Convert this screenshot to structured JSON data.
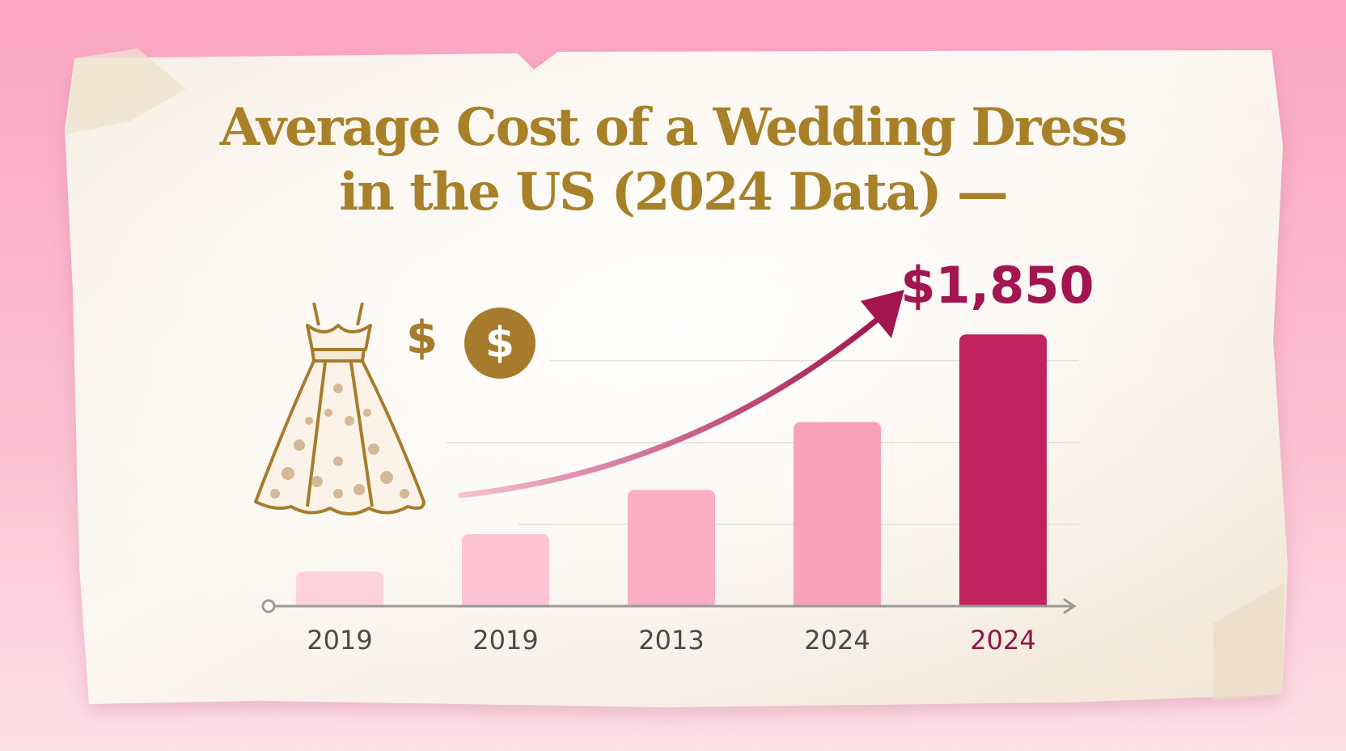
{
  "colors": {
    "title": "#a88028",
    "accent": "#a3154f",
    "gold": "#a67c2c",
    "axis": "#9a9a9a",
    "tick_label": "#4a4a4a",
    "highlight_tick_label": "#8f1547",
    "bar_colors": [
      "#fcd2dd",
      "#fcc4d4",
      "#fbaec6",
      "#f9a0bb",
      "#c0225e"
    ],
    "grid": "#e6dfd6"
  },
  "title": {
    "line1": "Average Cost of a Wedding Dress",
    "line2": "in the US (2024 Data) —"
  },
  "icons": [
    "wedding-dress-icon",
    "dollar-sign-icon",
    "dollar-coin-icon"
  ],
  "dollar_symbol": "$",
  "coin_symbol": "$",
  "chart_data": {
    "type": "bar",
    "title": "Average Cost of a Wedding Dress in the US (2024 Data) —",
    "categories": [
      "2019",
      "2019",
      "2013",
      "2024",
      "2024"
    ],
    "values": [
      420,
      880,
      1420,
      2250,
      3320
    ],
    "ylim": [
      0,
      3600
    ],
    "grid": true,
    "trend_arrow": true,
    "annotation": {
      "text": "$1,850",
      "category_index": 4
    }
  }
}
